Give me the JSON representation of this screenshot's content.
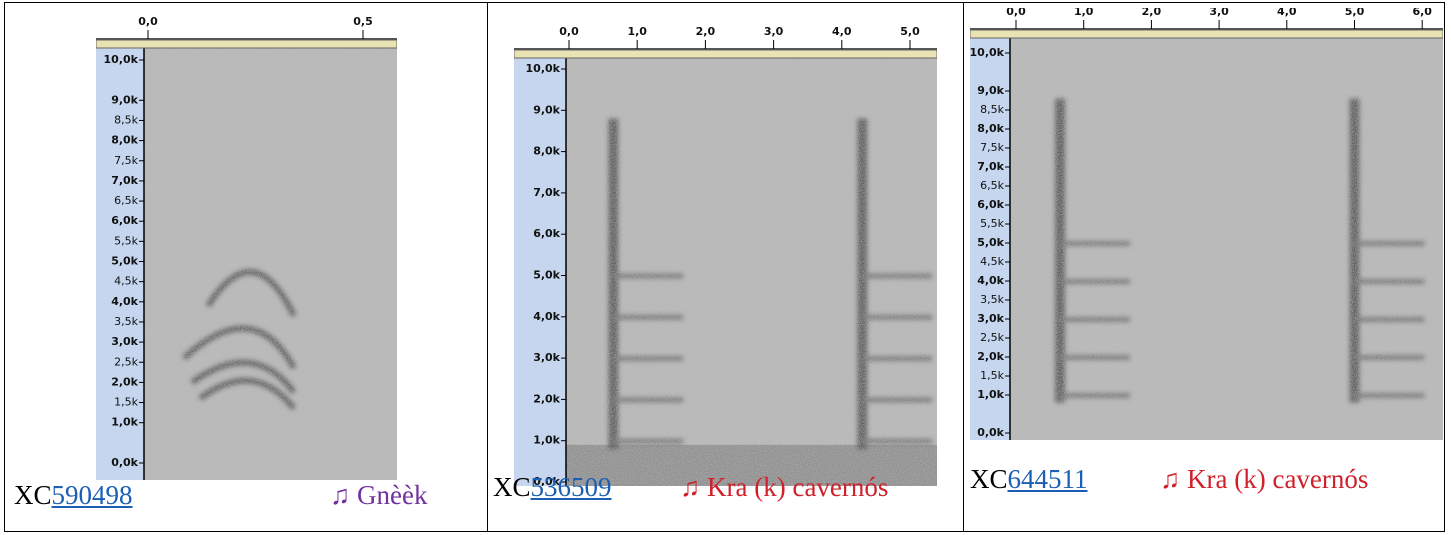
{
  "cells": [
    {
      "x_ticks": [
        "0,0",
        "0,5"
      ],
      "y_ticks": [
        "10,0k",
        "9,0k",
        "8,5k",
        "8,0k",
        "7,5k",
        "7,0k",
        "6,5k",
        "6,0k",
        "5,5k",
        "5,0k",
        "4,5k",
        "4,0k",
        "3,5k",
        "3,0k",
        "2,5k",
        "2,0k",
        "1,5k",
        "1,0k",
        "0,0k"
      ],
      "id_prefix": "XC",
      "id_link": "590498",
      "label": "♫ Gnèèk"
    },
    {
      "x_ticks": [
        "0,0",
        "1,0",
        "2,0",
        "3,0",
        "4,0",
        "5,0"
      ],
      "y_ticks": [
        "10,0k",
        "9,0k",
        "8,0k",
        "7,0k",
        "6,0k",
        "5,0k",
        "4,0k",
        "3,0k",
        "2,0k",
        "1,0k",
        "0,0k"
      ],
      "id_prefix": "XC",
      "id_link": "536509",
      "label": "♫ Kra (k) cavernós"
    },
    {
      "x_ticks": [
        "0,0",
        "1,0",
        "2,0",
        "3,0",
        "4,0",
        "5,0",
        "6,0"
      ],
      "y_ticks": [
        "10,0k",
        "9,0k",
        "8,5k",
        "8,0k",
        "7,5k",
        "7,0k",
        "6,5k",
        "6,0k",
        "5,5k",
        "5,0k",
        "4,5k",
        "4,0k",
        "3,5k",
        "3,0k",
        "2,5k",
        "2,0k",
        "1,5k",
        "1,0k",
        "0,0k"
      ],
      "id_prefix": "XC",
      "id_link": "644511",
      "label": "♫ Kra (k) cavernós"
    }
  ]
}
